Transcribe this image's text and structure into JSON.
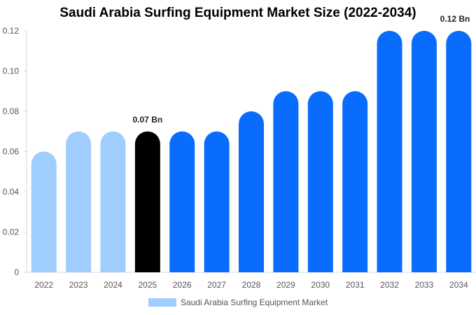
{
  "colors": {
    "light": "#9fcdfe",
    "highlight": "#000000",
    "primary": "#0a6cfc",
    "axis_text": "#555555",
    "grid": "#e6e6e6"
  },
  "chart_data": {
    "type": "bar",
    "title": "Saudi Arabia Surfing Equipment Market Size (2022-2034)",
    "xlabel": "",
    "ylabel": "",
    "ylim": [
      0,
      0.12
    ],
    "yticks": [
      "0",
      "0.02",
      "0.04",
      "0.06",
      "0.08",
      "0.10",
      "0.12"
    ],
    "categories": [
      "2022",
      "2023",
      "2024",
      "2025",
      "2026",
      "2027",
      "2028",
      "2029",
      "2030",
      "2031",
      "2032",
      "2033",
      "2034"
    ],
    "series": [
      {
        "name": "Saudi Arabia Surfing Equipment Market",
        "values": [
          0.06,
          0.07,
          0.07,
          0.07,
          0.07,
          0.07,
          0.08,
          0.09,
          0.09,
          0.09,
          0.12,
          0.12,
          0.12
        ]
      }
    ],
    "bar_colors": [
      "light",
      "light",
      "light",
      "highlight",
      "primary",
      "primary",
      "primary",
      "primary",
      "primary",
      "primary",
      "primary",
      "primary",
      "primary"
    ],
    "data_labels": [
      {
        "category": "2025",
        "text": "0.07 Bn"
      },
      {
        "category": "2034",
        "text": "0.12 Bn"
      }
    ],
    "legend_position": "bottom",
    "grid": false
  }
}
